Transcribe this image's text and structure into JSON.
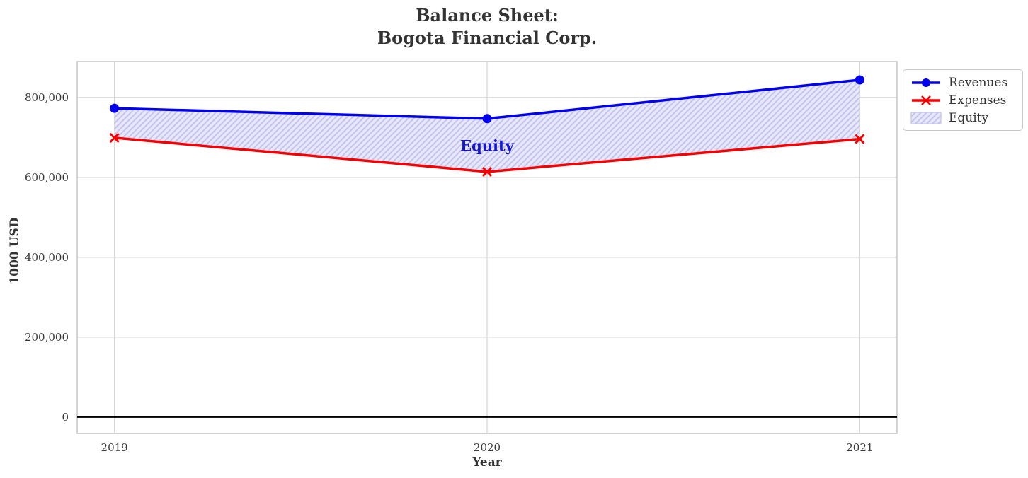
{
  "header": {
    "title_line1": "Balance Sheet:",
    "title_line2": "Bogota Financial Corp."
  },
  "chart_data": {
    "type": "line",
    "title_lines": [
      "Balance Sheet:",
      "Bogota Financial Corp."
    ],
    "xlabel": "Year",
    "ylabel": "1000 USD",
    "x": [
      2019,
      2020,
      2021
    ],
    "series": [
      {
        "name": "Revenues",
        "color": "#0000ee",
        "marker": "circle",
        "values": [
          773000,
          747000,
          844000
        ]
      },
      {
        "name": "Expenses",
        "color": "#f40000",
        "marker": "x",
        "values": [
          699000,
          614000,
          696000
        ]
      }
    ],
    "fill_between": {
      "label": "Equity",
      "upper_series": "Revenues",
      "lower_series": "Expenses",
      "values": [
        74000,
        133000,
        148000
      ],
      "fill_color": "#e8e8f9",
      "hatch_color": "#c3c3ef",
      "hatch_style": "/"
    },
    "annotation": {
      "text": "Equity",
      "x": 2020,
      "y": 680000,
      "color": "#1414d2"
    },
    "xlim": [
      2018.9,
      2021.1
    ],
    "ylim": [
      -41000,
      890000
    ],
    "xticks": [
      2019,
      2020,
      2021
    ],
    "xtick_labels": [
      "2019",
      "2020",
      "2021"
    ],
    "yticks": [
      0,
      200000,
      400000,
      600000,
      800000
    ],
    "ytick_labels": [
      "0",
      "200,000",
      "400,000",
      "600,000",
      "800,000"
    ],
    "grid": true,
    "zero_line": true,
    "legend_position": "outside upper right"
  }
}
